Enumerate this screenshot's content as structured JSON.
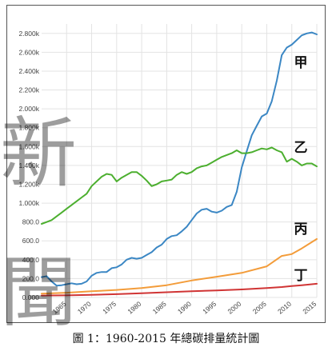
{
  "caption": "圖 1：1960-2015 年總碳排量統計圖",
  "watermark": [
    "新",
    "聞"
  ],
  "chart_data": {
    "type": "line",
    "title": "",
    "xlabel": "",
    "ylabel": "",
    "xlim": [
      1960,
      2015
    ],
    "ylim": [
      0,
      2900
    ],
    "x_ticks": [
      1965,
      1970,
      1975,
      1980,
      1985,
      1990,
      1995,
      2000,
      2005,
      2010,
      2015
    ],
    "y_ticks": [
      {
        "value": 0,
        "label": "0.000"
      },
      {
        "value": 200,
        "label": "200.0"
      },
      {
        "value": 400,
        "label": "400.0"
      },
      {
        "value": 600,
        "label": "600.0"
      },
      {
        "value": 800,
        "label": "800.0"
      },
      {
        "value": 1000,
        "label": "1.000k"
      },
      {
        "value": 1200,
        "label": "1.200k"
      },
      {
        "value": 1400,
        "label": "1.400k"
      },
      {
        "value": 1600,
        "label": "1.600k"
      },
      {
        "value": 1800,
        "label": "1.800k"
      },
      {
        "value": 2000,
        "label": "2.000k"
      },
      {
        "value": 2200,
        "label": "2.200k"
      },
      {
        "value": 2400,
        "label": "2.400k"
      },
      {
        "value": 2600,
        "label": "2.600k"
      },
      {
        "value": 2800,
        "label": "2.800k"
      }
    ],
    "grid": true,
    "series": [
      {
        "name": "甲",
        "color": "#3b87c4",
        "x": [
          1960,
          1961,
          1962,
          1963,
          1964,
          1965,
          1966,
          1967,
          1968,
          1969,
          1970,
          1971,
          1972,
          1973,
          1974,
          1975,
          1976,
          1977,
          1978,
          1979,
          1980,
          1981,
          1982,
          1983,
          1984,
          1985,
          1986,
          1987,
          1988,
          1989,
          1990,
          1991,
          1992,
          1993,
          1994,
          1995,
          1996,
          1997,
          1998,
          1999,
          2000,
          2001,
          2002,
          2003,
          2004,
          2005,
          2006,
          2007,
          2008,
          2009,
          2010,
          2011,
          2012,
          2013,
          2014,
          2015
        ],
        "values": [
          215,
          225,
          170,
          125,
          130,
          140,
          150,
          140,
          145,
          170,
          230,
          260,
          270,
          270,
          310,
          320,
          350,
          400,
          420,
          410,
          420,
          450,
          480,
          530,
          560,
          620,
          650,
          660,
          700,
          750,
          820,
          890,
          930,
          940,
          910,
          900,
          920,
          960,
          980,
          1120,
          1380,
          1550,
          1720,
          1820,
          1920,
          1950,
          2080,
          2300,
          2570,
          2650,
          2680,
          2730,
          2780,
          2800,
          2810,
          2790
        ]
      },
      {
        "name": "乙",
        "color": "#4caf2f",
        "x": [
          1960,
          1961,
          1962,
          1963,
          1964,
          1965,
          1966,
          1967,
          1968,
          1969,
          1970,
          1971,
          1972,
          1973,
          1974,
          1975,
          1976,
          1977,
          1978,
          1979,
          1980,
          1981,
          1982,
          1983,
          1984,
          1985,
          1986,
          1987,
          1988,
          1989,
          1990,
          1991,
          1992,
          1993,
          1994,
          1995,
          1996,
          1997,
          1998,
          1999,
          2000,
          2001,
          2002,
          2003,
          2004,
          2005,
          2006,
          2007,
          2008,
          2009,
          2010,
          2011,
          2012,
          2013,
          2014,
          2015
        ],
        "values": [
          780,
          800,
          820,
          860,
          900,
          940,
          980,
          1020,
          1060,
          1100,
          1180,
          1230,
          1280,
          1310,
          1300,
          1230,
          1270,
          1300,
          1330,
          1330,
          1290,
          1240,
          1180,
          1200,
          1230,
          1240,
          1250,
          1300,
          1330,
          1310,
          1330,
          1370,
          1390,
          1400,
          1430,
          1460,
          1490,
          1510,
          1530,
          1560,
          1530,
          1530,
          1540,
          1560,
          1580,
          1570,
          1590,
          1560,
          1540,
          1440,
          1470,
          1440,
          1400,
          1420,
          1420,
          1390
        ]
      },
      {
        "name": "丙",
        "color": "#f39c3a",
        "x": [
          1960,
          1965,
          1970,
          1975,
          1980,
          1985,
          1990,
          1995,
          2000,
          2005,
          2008,
          2010,
          2012,
          2015
        ],
        "values": [
          40,
          50,
          65,
          80,
          100,
          130,
          180,
          220,
          260,
          330,
          440,
          460,
          520,
          620
        ]
      },
      {
        "name": "丁",
        "color": "#d03434",
        "x": [
          1960,
          1965,
          1970,
          1975,
          1980,
          1985,
          1990,
          1995,
          2000,
          2005,
          2008,
          2010,
          2012,
          2015
        ],
        "values": [
          20,
          22,
          28,
          35,
          45,
          55,
          65,
          75,
          85,
          100,
          110,
          120,
          130,
          145
        ]
      }
    ]
  }
}
